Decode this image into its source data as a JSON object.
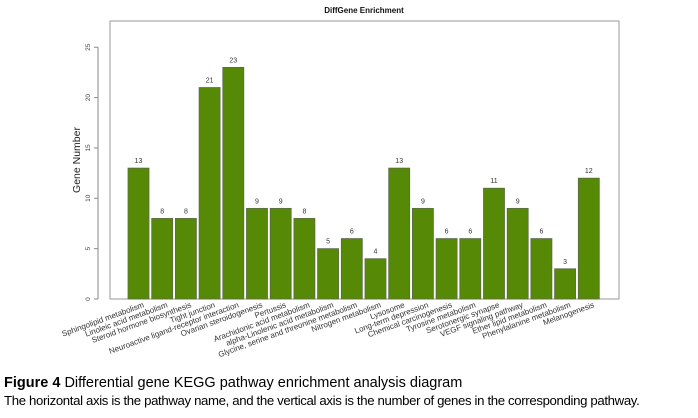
{
  "chart_data": {
    "type": "bar",
    "title": "DiffGene Enrichment",
    "xlabel": "",
    "ylabel": "Gene Number",
    "ylim": [
      0,
      27
    ],
    "yticks": [
      0,
      5,
      10,
      15,
      20,
      25
    ],
    "grid": false,
    "bar_color": "#568a06",
    "bar_border_color": "#5b6b46",
    "categories": [
      "Sphingolipid metabolism",
      "Linoleic acid metabolism",
      "Steroid hormone biosynthesis",
      "Tight junction",
      "Neuroactive ligand-receptor interaction",
      "Ovarian steroidogenesis",
      "Pertussis",
      "Arachidonic acid metabolism",
      "alpha-Linolenic acid metabolism",
      "Glycine, serine and threonine metabolism",
      "Nitrogen metabolism",
      "Lysosome",
      "Long-term depression",
      "Chemical carcinogenesis",
      "Tyrosine metabolism",
      "Serotonergic synapse",
      "VEGF signaling pathway",
      "Ether lipid metabolism",
      "Phenylalanine metabolism",
      "Melanogenesis"
    ],
    "values": [
      13,
      8,
      8,
      21,
      23,
      9,
      9,
      8,
      5,
      6,
      4,
      13,
      9,
      6,
      6,
      11,
      9,
      6,
      3,
      12
    ]
  },
  "caption": {
    "figure_label": "Figure 4",
    "title": "Differential gene KEGG pathway enrichment analysis diagram",
    "description": "The horizontal axis is the pathway name, and the vertical axis is the number of genes in the corresponding pathway."
  }
}
